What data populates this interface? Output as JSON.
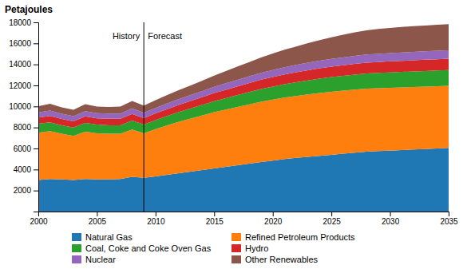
{
  "chart_data": {
    "type": "area",
    "stacked": true,
    "ylabel": "Petajoules",
    "x": [
      2000,
      2001,
      2002,
      2003,
      2004,
      2005,
      2006,
      2007,
      2008,
      2009,
      2010,
      2011,
      2012,
      2013,
      2014,
      2015,
      2016,
      2017,
      2018,
      2019,
      2020,
      2021,
      2022,
      2023,
      2024,
      2025,
      2026,
      2027,
      2028,
      2029,
      2030,
      2031,
      2032,
      2033,
      2034,
      2035
    ],
    "series": [
      {
        "name": "Natural Gas",
        "values": [
          3000,
          3100,
          3050,
          3000,
          3100,
          3050,
          3050,
          3100,
          3300,
          3200,
          3350,
          3500,
          3650,
          3800,
          3950,
          4100,
          4250,
          4400,
          4550,
          4700,
          4850,
          5000,
          5100,
          5200,
          5300,
          5400,
          5500,
          5600,
          5700,
          5750,
          5800,
          5850,
          5900,
          5950,
          6000,
          6050
        ]
      },
      {
        "name": "Refined Petroleum Products",
        "values": [
          4500,
          4550,
          4350,
          4200,
          4500,
          4400,
          4350,
          4300,
          4500,
          4250,
          4500,
          4700,
          4900,
          5050,
          5200,
          5350,
          5450,
          5550,
          5650,
          5750,
          5800,
          5850,
          5900,
          5950,
          5980,
          6000,
          6000,
          6000,
          5990,
          5980,
          5970,
          5960,
          5950,
          5940,
          5930,
          5920
        ]
      },
      {
        "name": "Coal, Coke and Coke Oven Gas",
        "values": [
          850,
          830,
          810,
          800,
          830,
          820,
          810,
          800,
          850,
          820,
          850,
          890,
          920,
          960,
          1000,
          1050,
          1090,
          1130,
          1170,
          1210,
          1240,
          1270,
          1300,
          1330,
          1360,
          1390,
          1410,
          1430,
          1450,
          1460,
          1470,
          1475,
          1480,
          1485,
          1490,
          1495
        ]
      },
      {
        "name": "Hydro",
        "values": [
          600,
          620,
          600,
          580,
          620,
          600,
          610,
          620,
          640,
          620,
          640,
          660,
          680,
          710,
          740,
          770,
          800,
          830,
          860,
          890,
          910,
          930,
          950,
          970,
          985,
          1000,
          1010,
          1020,
          1030,
          1040,
          1050,
          1055,
          1060,
          1065,
          1070,
          1075
        ]
      },
      {
        "name": "Nuclear",
        "values": [
          480,
          500,
          490,
          490,
          510,
          490,
          495,
          500,
          520,
          505,
          520,
          535,
          550,
          565,
          580,
          595,
          610,
          625,
          640,
          655,
          670,
          685,
          700,
          715,
          725,
          735,
          745,
          755,
          765,
          775,
          785,
          790,
          795,
          800,
          805,
          810
        ]
      },
      {
        "name": "Other Renewables",
        "values": [
          600,
          650,
          620,
          610,
          650,
          630,
          640,
          660,
          700,
          680,
          740,
          800,
          860,
          920,
          990,
          1060,
          1160,
          1260,
          1360,
          1460,
          1560,
          1660,
          1760,
          1860,
          1960,
          2060,
          2150,
          2240,
          2310,
          2360,
          2400,
          2430,
          2450,
          2460,
          2470,
          2480
        ]
      }
    ],
    "xlim": [
      2000,
      2035
    ],
    "xticks": [
      2000,
      2005,
      2010,
      2015,
      2020,
      2025,
      2030,
      2035
    ],
    "ylim": [
      0,
      18000
    ],
    "yticks": [
      2000,
      4000,
      6000,
      8000,
      10000,
      12000,
      14000,
      16000,
      18000
    ],
    "vlines": [
      2009
    ],
    "annotations": [
      {
        "text": "History",
        "x": 2009,
        "y": 17000,
        "anchor": "end"
      },
      {
        "text": "Forecast",
        "x": 2009,
        "y": 17000,
        "anchor": "start"
      }
    ],
    "grid": false,
    "legend": "bottom"
  }
}
